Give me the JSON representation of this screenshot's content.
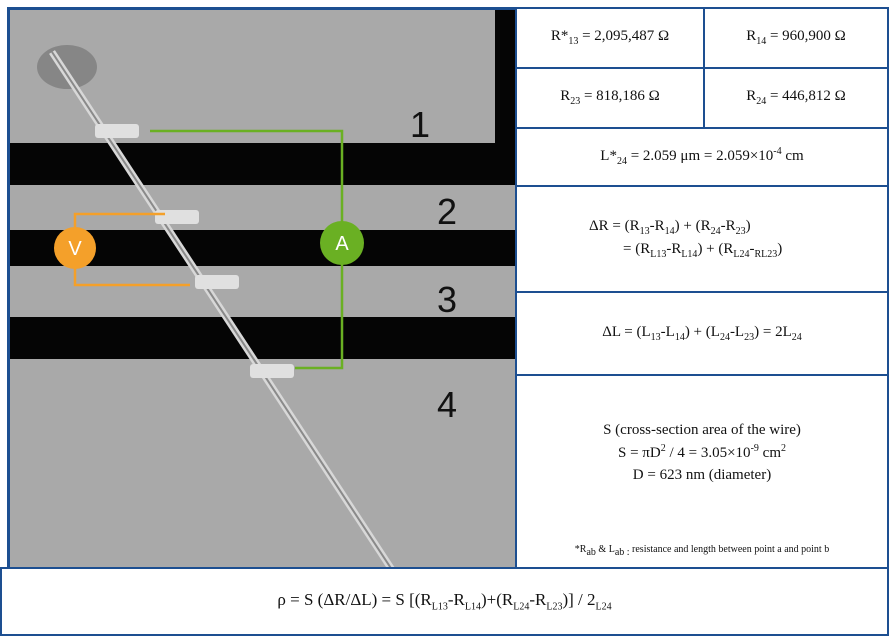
{
  "image_labels": [
    "1",
    "2",
    "3",
    "4"
  ],
  "meters": [
    "V",
    "A"
  ],
  "table": {
    "cells": [
      [
        [
          "R*",
          {
            "sub": "13"
          },
          " = 2,095,487 Ω"
        ]
      ],
      [
        [
          "R",
          {
            "sub": "14"
          },
          " = 960,900 Ω"
        ]
      ],
      [
        [
          "R",
          {
            "sub": "23"
          },
          " = 818,186 Ω"
        ]
      ],
      [
        [
          "R",
          {
            "sub": "24"
          },
          " = 446,812 Ω"
        ]
      ],
      [
        [
          "L*",
          {
            "sub": "24"
          },
          " = 2.059 μm = 2.059×10",
          {
            "sup": "-4"
          },
          " cm"
        ]
      ],
      [
        [
          "ΔR = (R",
          {
            "sub": "13"
          },
          "-R",
          {
            "sub": "14"
          },
          ") + (R",
          {
            "sub": "24"
          },
          "-R",
          {
            "sub": "23"
          },
          ")"
        ],
        [
          "= (R",
          {
            "sub": "L13"
          },
          "-R",
          {
            "sub": "L14"
          },
          ") + (R",
          {
            "sub": "L24"
          },
          "-",
          {
            "sub": "RL23"
          },
          ")"
        ]
      ],
      [
        [
          "ΔL = (L",
          {
            "sub": "13"
          },
          "-L",
          {
            "sub": "14"
          },
          ") + (L",
          {
            "sub": "24"
          },
          "-L",
          {
            "sub": "23"
          },
          ") = 2L",
          {
            "sub": "24"
          }
        ]
      ],
      [
        [
          "S (cross-section area of the wire)"
        ],
        [
          "S = πD",
          {
            "sup": "2"
          },
          " / 4 = 3.05×10",
          {
            "sup": "-9"
          },
          " cm",
          {
            "sup": "2"
          }
        ],
        [
          "D = 623 nm (diameter)"
        ]
      ],
      [
        [
          "*R",
          {
            "sub": "ab"
          },
          " & L",
          {
            "sub": "ab :"
          },
          " resistance and length between point a and point b"
        ]
      ]
    ],
    "footer": [
      [
        "ρ = S (ΔR/ΔL) = S [(R",
        {
          "sub": "L13"
        },
        "-R",
        {
          "sub": "L14"
        },
        ")+(R",
        {
          "sub": "L24"
        },
        "-R",
        {
          "sub": "L23"
        },
        ")] / 2",
        {
          "sub": "L24"
        }
      ]
    ]
  }
}
